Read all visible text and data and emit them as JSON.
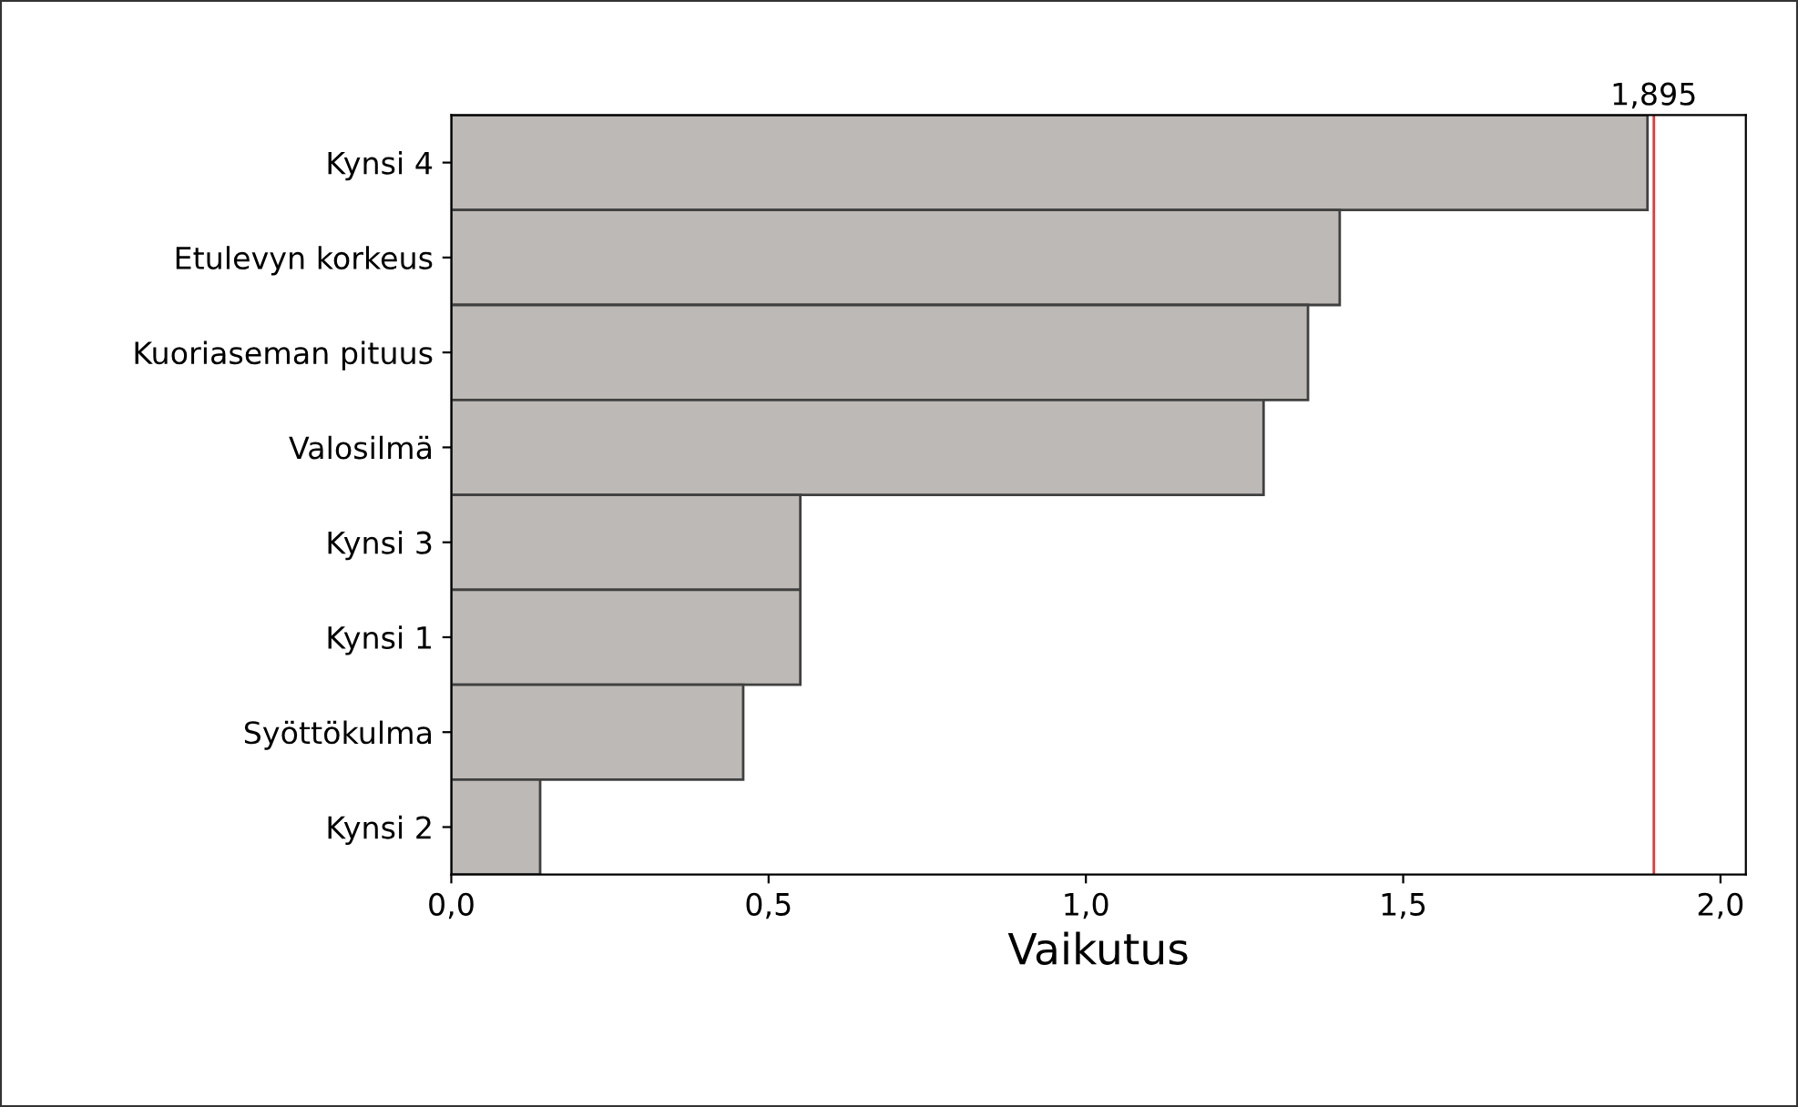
{
  "chart_data": {
    "type": "bar",
    "orientation": "horizontal",
    "xlabel": "Vaikutus",
    "categories": [
      "Kynsi 4",
      "Etulevyn korkeus",
      "Kuoriaseman pituus",
      "Valosilmä",
      "Kynsi 3",
      "Kynsi 1",
      "Syöttökulma",
      "Kynsi 2"
    ],
    "values": [
      1.885,
      1.4,
      1.35,
      1.28,
      0.55,
      0.55,
      0.46,
      0.14
    ],
    "color": "#bdb9b6",
    "xlim": [
      0,
      2.04
    ],
    "xticks": [
      {
        "value": 0,
        "label": "0,0"
      },
      {
        "value": 0.5,
        "label": "0,5"
      },
      {
        "value": 1.0,
        "label": "1,0"
      },
      {
        "value": 1.5,
        "label": "1,5"
      },
      {
        "value": 2.0,
        "label": "2,0"
      }
    ],
    "ref_lines": [
      {
        "axis": "x",
        "value": 1.895,
        "label": "1,895",
        "color": "#e03c3c"
      }
    ],
    "grid": false
  }
}
